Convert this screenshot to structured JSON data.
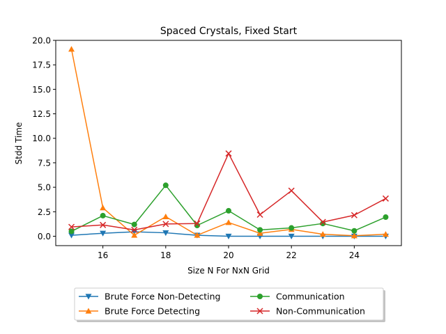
{
  "chart_data": {
    "type": "line",
    "title": "Spaced Crystals, Fixed Start",
    "xlabel": "Size N For NxN Grid",
    "ylabel": "Stdd Time",
    "x": [
      15,
      16,
      17,
      18,
      19,
      20,
      21,
      22,
      23,
      24,
      25
    ],
    "xlim": [
      14.5,
      25.5
    ],
    "ylim": [
      -0.96,
      20.0
    ],
    "xticks": [
      16,
      18,
      20,
      22,
      24
    ],
    "yticks": [
      0.0,
      2.5,
      5.0,
      7.5,
      10.0,
      12.5,
      15.0,
      17.5,
      20.0
    ],
    "xtick_labels": [
      "16",
      "18",
      "20",
      "22",
      "24"
    ],
    "ytick_labels": [
      "0.0",
      "2.5",
      "5.0",
      "7.5",
      "10.0",
      "12.5",
      "15.0",
      "17.5",
      "20.0"
    ],
    "grid": false,
    "legend_position": "below-center",
    "series": [
      {
        "name": "Brute Force Non-Detecting",
        "color": "#1f77b4",
        "marker": "triangle-down",
        "values": [
          0.1,
          0.3,
          0.45,
          0.35,
          0.1,
          0.0,
          0.0,
          0.0,
          0.0,
          0.0,
          0.0
        ]
      },
      {
        "name": "Brute Force Detecting",
        "color": "#ff7f0e",
        "marker": "triangle-up",
        "values": [
          19.1,
          2.9,
          0.1,
          2.0,
          0.1,
          1.4,
          0.3,
          0.7,
          0.2,
          0.05,
          0.2
        ]
      },
      {
        "name": "Communication",
        "color": "#2ca02c",
        "marker": "circle",
        "values": [
          0.5,
          2.1,
          1.2,
          5.2,
          1.1,
          2.6,
          0.65,
          0.85,
          1.3,
          0.55,
          1.95
        ]
      },
      {
        "name": "Non-Communication",
        "color": "#d62728",
        "marker": "x",
        "values": [
          0.95,
          1.15,
          0.65,
          1.25,
          1.3,
          8.45,
          2.2,
          4.65,
          1.45,
          2.15,
          3.85
        ]
      }
    ]
  }
}
